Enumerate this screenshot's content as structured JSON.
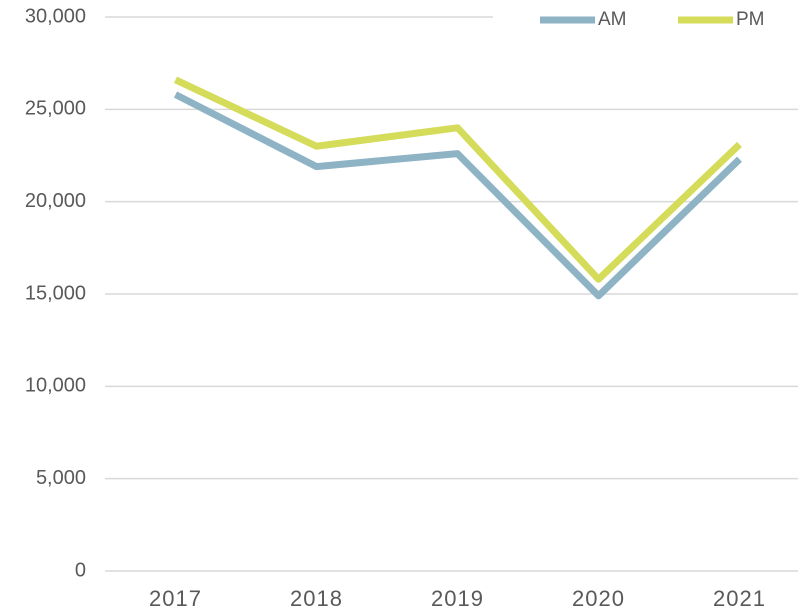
{
  "chart_data": {
    "type": "line",
    "categories": [
      "2017",
      "2018",
      "2019",
      "2020",
      "2021"
    ],
    "series": [
      {
        "name": "AM",
        "color": "#8db3c4",
        "values": [
          25800,
          21900,
          22600,
          14900,
          22300
        ]
      },
      {
        "name": "PM",
        "color": "#d4dc5a",
        "values": [
          26600,
          23000,
          24000,
          15800,
          23100
        ]
      }
    ],
    "ylim": [
      0,
      30000
    ],
    "yticks": [
      0,
      {
        "value": 5000,
        "label": "5,000"
      },
      {
        "value": 10000,
        "label": "10,000"
      },
      {
        "value": 15000,
        "label": "15,000"
      },
      {
        "value": 20000,
        "label": "20,000"
      },
      {
        "value": 25000,
        "label": "25,000"
      },
      {
        "value": 30000,
        "label": "30,000"
      }
    ],
    "grid": true,
    "legend": "top-right"
  }
}
